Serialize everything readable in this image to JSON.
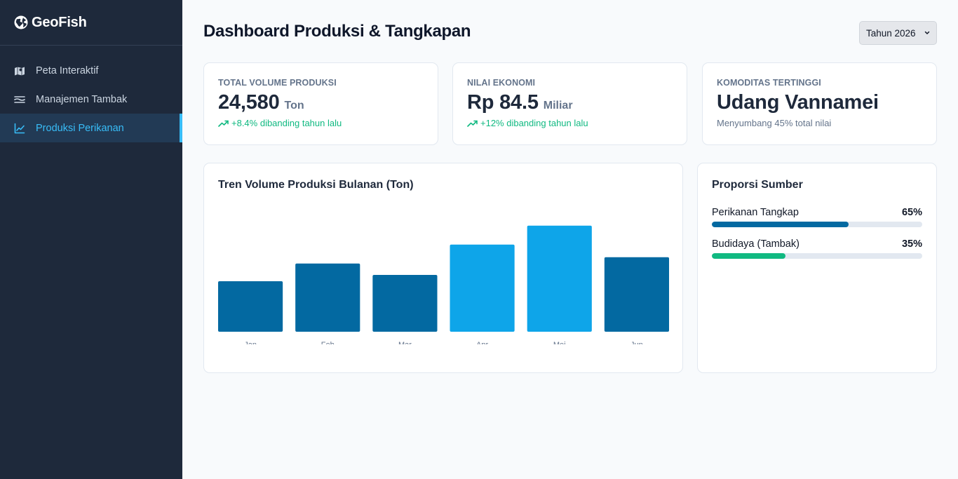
{
  "app": {
    "name": "GeoFish"
  },
  "sidebar": {
    "items": [
      {
        "label": "Peta Interaktif",
        "icon": "map-icon",
        "active": false
      },
      {
        "label": "Manajemen Tambak",
        "icon": "waves-icon",
        "active": false
      },
      {
        "label": "Produksi Perikanan",
        "icon": "line-chart-icon",
        "active": true
      }
    ]
  },
  "header": {
    "title": "Dashboard Produksi & Tangkapan",
    "year_select": {
      "value": "Tahun 2026"
    }
  },
  "kpis": [
    {
      "label": "Total Volume Produksi",
      "value": "24,580",
      "unit": "Ton",
      "note": "+8.4% dibanding tahun lalu",
      "trend": "up"
    },
    {
      "label": "Nilai Ekonomi",
      "value": "Rp 84.5",
      "unit": "Miliar",
      "note": "+12% dibanding tahun lalu",
      "trend": "up"
    },
    {
      "label": "Komoditas Tertinggi",
      "value": "Udang Vannamei",
      "unit": "",
      "note": "Menyumbang 45% total nilai",
      "trend": "neutral"
    }
  ],
  "chart": {
    "title": "Tren Volume Produksi Bulanan (Ton)"
  },
  "chart_data": {
    "type": "bar",
    "categories": [
      "Jan",
      "Feb",
      "Mar",
      "Apr",
      "Mei",
      "Jun"
    ],
    "values": [
      40,
      54,
      45,
      69,
      84,
      59
    ],
    "highlighted": [
      false,
      false,
      false,
      true,
      true,
      false
    ],
    "ylim": [
      0,
      100
    ],
    "grid": false,
    "colors": {
      "default": "#0369a1",
      "highlight": "#0ea5e9",
      "baseline": "#e2e8f0",
      "tick": "#64748b"
    }
  },
  "proportion": {
    "title": "Proporsi Sumber",
    "items": [
      {
        "label": "Perikanan Tangkap",
        "pct_label": "65%",
        "value": 0.65,
        "color": "#0369a1"
      },
      {
        "label": "Budidaya (Tambak)",
        "pct_label": "35%",
        "value": 0.35,
        "color": "#10b981"
      }
    ]
  }
}
